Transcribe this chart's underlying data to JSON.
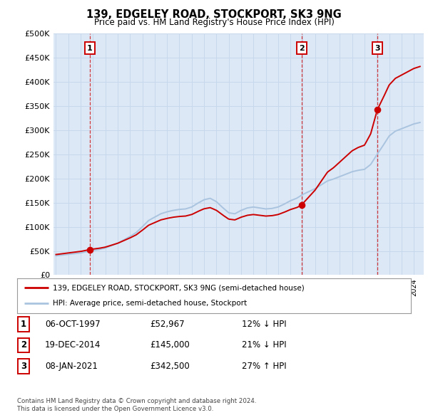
{
  "title": "139, EDGELEY ROAD, STOCKPORT, SK3 9NG",
  "subtitle": "Price paid vs. HM Land Registry's House Price Index (HPI)",
  "ylabel_ticks": [
    "£0",
    "£50K",
    "£100K",
    "£150K",
    "£200K",
    "£250K",
    "£300K",
    "£350K",
    "£400K",
    "£450K",
    "£500K"
  ],
  "ytick_values": [
    0,
    50000,
    100000,
    150000,
    200000,
    250000,
    300000,
    350000,
    400000,
    450000,
    500000
  ],
  "ylim": [
    0,
    500000
  ],
  "sale_prices": [
    52967,
    145000,
    342500
  ],
  "sale_labels": [
    "1",
    "2",
    "3"
  ],
  "sale_year_floats": [
    1997.75,
    2014.9167,
    2021.0417
  ],
  "legend_property": "139, EDGELEY ROAD, STOCKPORT, SK3 9NG (semi-detached house)",
  "legend_hpi": "HPI: Average price, semi-detached house, Stockport",
  "table_rows": [
    {
      "num": "1",
      "date": "06-OCT-1997",
      "price": "£52,967",
      "hpi": "12% ↓ HPI"
    },
    {
      "num": "2",
      "date": "19-DEC-2014",
      "price": "£145,000",
      "hpi": "21% ↓ HPI"
    },
    {
      "num": "3",
      "date": "08-JAN-2021",
      "price": "£342,500",
      "hpi": "27% ↑ HPI"
    }
  ],
  "footnote1": "Contains HM Land Registry data © Crown copyright and database right 2024.",
  "footnote2": "This data is licensed under the Open Government Licence v3.0.",
  "hpi_color": "#aac4e0",
  "sale_color": "#cc0000",
  "vline_color": "#cc0000",
  "grid_color": "#c8d8ec",
  "plot_bg": "#dce8f5",
  "xlim_left": 1994.8,
  "xlim_right": 2024.8
}
